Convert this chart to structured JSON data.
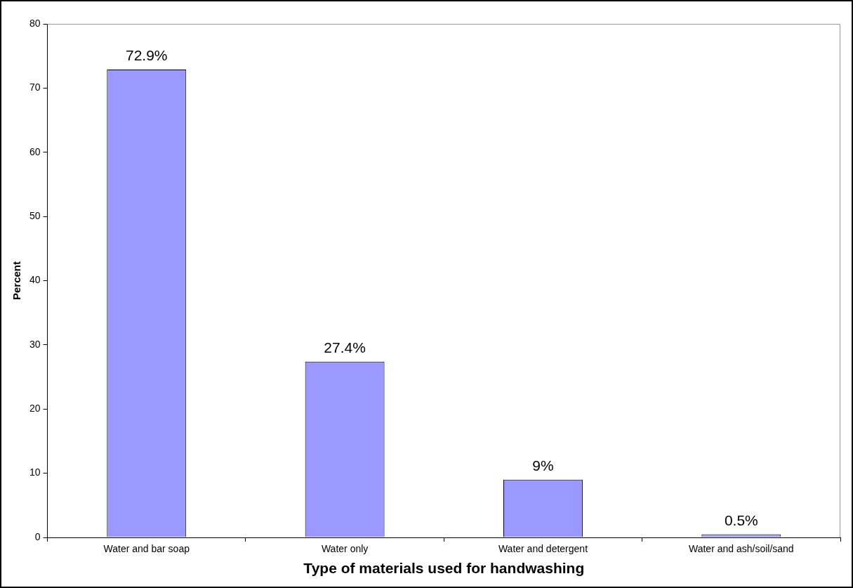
{
  "chart_data": {
    "type": "bar",
    "xlabel": "Type of materials used for handwashing",
    "ylabel": "Percent",
    "categories": [
      "Water and bar soap",
      "Water only",
      "Water and detergent",
      "Water and ash/soil/sand"
    ],
    "values": [
      72.9,
      27.4,
      9,
      0.5
    ],
    "value_labels": [
      "72.9%",
      "27.4%",
      "9%",
      "0.5%"
    ],
    "color": "#9999ff",
    "ylim": [
      0,
      80
    ],
    "yticks": [
      0,
      10,
      20,
      30,
      40,
      50,
      60,
      70,
      80
    ],
    "grid": false,
    "legend": false
  }
}
